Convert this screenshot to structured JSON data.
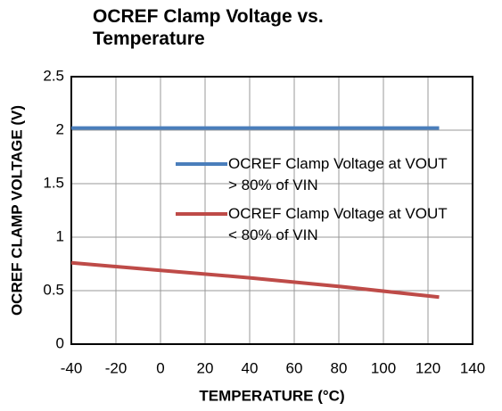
{
  "chart_data": {
    "type": "line",
    "title": "OCREF Clamp Voltage vs. Temperature",
    "x_label": "TEMPERATURE (°C)",
    "y_label": "OCREF CLAMP VOLTAGE (V)",
    "x": [
      -40,
      0,
      40,
      80,
      125
    ],
    "series": [
      {
        "name": "OCREF Clamp Voltage at VOUT > 80% of VIN",
        "color": "#4a7ebb",
        "values": [
          2.02,
          2.02,
          2.02,
          2.02,
          2.02
        ]
      },
      {
        "name": "OCREF Clamp Voltage at VOUT < 80% of VIN",
        "color": "#be4b48",
        "values": [
          0.76,
          0.69,
          0.62,
          0.54,
          0.44
        ]
      }
    ],
    "xlim": [
      -40,
      140
    ],
    "xticks": [
      -40,
      -20,
      0,
      20,
      40,
      60,
      80,
      100,
      120,
      140
    ],
    "ylim": [
      0,
      2.5
    ],
    "yticks": [
      0,
      0.5,
      1,
      1.5,
      2,
      2.5
    ],
    "grid": true
  }
}
